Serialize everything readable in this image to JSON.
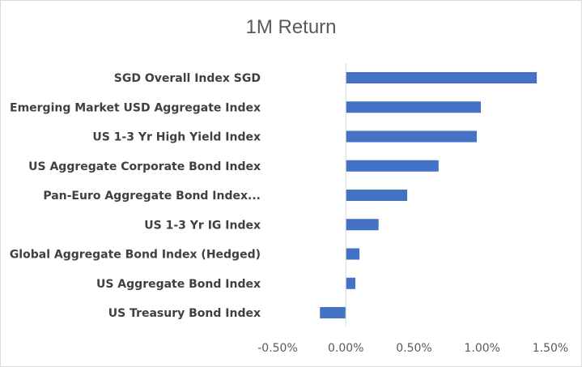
{
  "chart_data": {
    "type": "bar",
    "orientation": "horizontal",
    "title": "1M Return",
    "categories": [
      "SGD Overall Index SGD",
      "Emerging Market USD Aggregate Index",
      "US 1-3 Yr High Yield Index",
      "US Aggregate Corporate Bond Index",
      "Pan-Euro Aggregate Bond Index...",
      "US 1-3 Yr IG Index",
      "Global Aggregate Bond Index (Hedged)",
      "US Aggregate Bond Index",
      "US Treasury Bond Index"
    ],
    "values": [
      1.4,
      0.99,
      0.96,
      0.68,
      0.45,
      0.24,
      0.1,
      0.07,
      -0.19
    ],
    "value_unit": "%",
    "xlim": [
      -0.5,
      1.5
    ],
    "xticks": [
      -0.5,
      0.0,
      0.5,
      1.0,
      1.5
    ],
    "xtick_labels": [
      "-0.50%",
      "0.00%",
      "0.50%",
      "1.00%",
      "1.50%"
    ],
    "xlabel": "",
    "ylabel": "",
    "grid": false,
    "legend": "none",
    "bar_color": "#4472c4",
    "axis_color": "#d9d9d9",
    "text_color": "#595959"
  }
}
